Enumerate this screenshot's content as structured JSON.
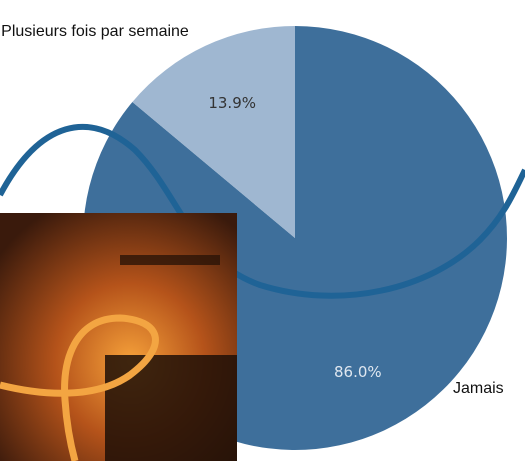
{
  "chart_data": {
    "type": "pie",
    "categories": [
      "Jamais",
      "Plusieurs fois par semaine"
    ],
    "values": [
      86.0,
      13.9
    ],
    "value_labels": [
      "86.0%",
      "13.9%"
    ],
    "colors": [
      "#3e6f9b",
      "#9fb7d1"
    ],
    "label_colors": [
      "#dfe7f0",
      "#333333"
    ]
  }
}
